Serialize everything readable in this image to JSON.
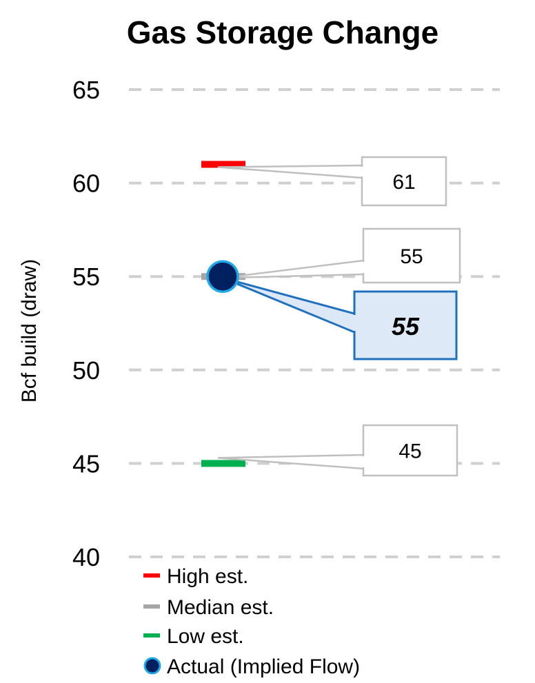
{
  "chart_data": {
    "type": "scatter",
    "title": "Gas Storage Change",
    "xlabel": "",
    "ylabel": "Bcf build (draw)",
    "ylim": [
      40,
      65
    ],
    "yticks": [
      40,
      45,
      50,
      55,
      60,
      65
    ],
    "grid": true,
    "legend_position": "bottom-left",
    "series": [
      {
        "name": "High est.",
        "value": 61,
        "color": "#ff0000",
        "marker": "dash",
        "label": "61"
      },
      {
        "name": "Median est.",
        "value": 55,
        "color": "#a6a6a6",
        "marker": "dash",
        "label": "55"
      },
      {
        "name": "Low est.",
        "value": 45,
        "color": "#00b050",
        "marker": "dash",
        "label": "45"
      },
      {
        "name": "Actual (Implied Flow)",
        "value": 55,
        "color": "#002060",
        "edge_color": "#1fa8e8",
        "marker": "circle",
        "label": "55"
      }
    ]
  }
}
